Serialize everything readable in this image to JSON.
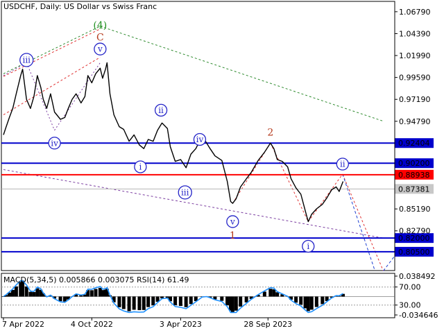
{
  "chart_data": {
    "type": "line",
    "title": "USDCHF, Daily:  US Dollar vs Swiss Franc",
    "price_axis": {
      "ylim": [
        0.7844,
        1.0792
      ],
      "ticks": [
        "1.06790",
        "1.04390",
        "1.01990",
        "0.99590",
        "0.97190",
        "0.94790",
        "0.85190",
        "0.82790"
      ]
    },
    "time_axis": {
      "xlim": [
        "2022-04-07",
        "2023-12-20"
      ],
      "ticks": [
        {
          "date": "2022-04-07",
          "label": "7 Apr 2022"
        },
        {
          "date": "2022-10-04",
          "label": "4 Oct 2022"
        },
        {
          "date": "2023-04-03",
          "label": "3 Apr 2023"
        },
        {
          "date": "2023-09-28",
          "label": "28 Sep 2023"
        }
      ]
    },
    "price_series": [
      [
        "2022-04-07",
        0.933
      ],
      [
        "2022-04-12",
        0.941
      ],
      [
        "2022-04-19",
        0.952
      ],
      [
        "2022-04-26",
        0.962
      ],
      [
        "2022-05-03",
        0.978
      ],
      [
        "2022-05-12",
        0.998
      ],
      [
        "2022-05-16",
        1.005
      ],
      [
        "2022-05-24",
        0.972
      ],
      [
        "2022-06-01",
        0.962
      ],
      [
        "2022-06-08",
        0.975
      ],
      [
        "2022-06-15",
        0.998
      ],
      [
        "2022-06-22",
        0.985
      ],
      [
        "2022-06-27",
        0.972
      ],
      [
        "2022-07-04",
        0.962
      ],
      [
        "2022-07-12",
        0.978
      ],
      [
        "2022-07-20",
        0.958
      ],
      [
        "2022-08-01",
        0.95
      ],
      [
        "2022-08-10",
        0.952
      ],
      [
        "2022-08-17",
        0.962
      ],
      [
        "2022-08-25",
        0.972
      ],
      [
        "2022-09-02",
        0.978
      ],
      [
        "2022-09-12",
        0.968
      ],
      [
        "2022-09-20",
        0.975
      ],
      [
        "2022-09-26",
        0.998
      ],
      [
        "2022-10-04",
        0.99
      ],
      [
        "2022-10-12",
        1.0
      ],
      [
        "2022-10-21",
        1.006
      ],
      [
        "2022-10-26",
        0.995
      ],
      [
        "2022-11-01",
        1.005
      ],
      [
        "2022-11-04",
        1.012
      ],
      [
        "2022-11-10",
        0.978
      ],
      [
        "2022-11-18",
        0.955
      ],
      [
        "2022-11-29",
        0.942
      ],
      [
        "2022-12-08",
        0.939
      ],
      [
        "2022-12-19",
        0.926
      ],
      [
        "2022-12-29",
        0.933
      ],
      [
        "2023-01-09",
        0.922
      ],
      [
        "2023-01-18",
        0.918
      ],
      [
        "2023-01-27",
        0.928
      ],
      [
        "2023-02-06",
        0.926
      ],
      [
        "2023-02-15",
        0.938
      ],
      [
        "2023-02-24",
        0.946
      ],
      [
        "2023-03-07",
        0.94
      ],
      [
        "2023-03-13",
        0.92
      ],
      [
        "2023-03-23",
        0.904
      ],
      [
        "2023-04-03",
        0.906
      ],
      [
        "2023-04-14",
        0.897
      ],
      [
        "2023-04-24",
        0.912
      ],
      [
        "2023-05-04",
        0.918
      ],
      [
        "2023-05-17",
        0.932
      ],
      [
        "2023-05-26",
        0.924
      ],
      [
        "2023-06-02",
        0.918
      ],
      [
        "2023-06-12",
        0.91
      ],
      [
        "2023-06-26",
        0.905
      ],
      [
        "2023-07-07",
        0.882
      ],
      [
        "2023-07-14",
        0.86
      ],
      [
        "2023-07-18",
        0.858
      ],
      [
        "2023-07-25",
        0.863
      ],
      [
        "2023-08-03",
        0.876
      ],
      [
        "2023-08-15",
        0.885
      ],
      [
        "2023-08-25",
        0.892
      ],
      [
        "2023-09-08",
        0.905
      ],
      [
        "2023-09-21",
        0.914
      ],
      [
        "2023-10-03",
        0.924
      ],
      [
        "2023-10-10",
        0.918
      ],
      [
        "2023-10-17",
        0.906
      ],
      [
        "2023-10-27",
        0.904
      ],
      [
        "2023-11-07",
        0.898
      ],
      [
        "2023-11-14",
        0.885
      ],
      [
        "2023-11-24",
        0.875
      ],
      [
        "2023-12-04",
        0.868
      ],
      [
        "2023-12-13",
        0.85
      ],
      [
        "2023-12-19",
        0.838
      ],
      [
        "2023-12-26",
        0.846
      ],
      [
        "2024-01-05",
        0.852
      ],
      [
        "2024-01-17",
        0.857
      ],
      [
        "2024-01-26",
        0.864
      ],
      [
        "2024-02-05",
        0.873
      ],
      [
        "2024-02-14",
        0.876
      ],
      [
        "2024-02-20",
        0.871
      ],
      [
        "2024-02-28",
        0.882
      ]
    ],
    "levels": [
      {
        "price": 0.92404,
        "label": "0.92404",
        "color": "#0000cc"
      },
      {
        "price": 0.902,
        "label": "0.90200",
        "color": "#0000cc"
      },
      {
        "price": 0.88938,
        "label": "0.88938",
        "color": "#ff0000"
      },
      {
        "price": 0.82,
        "label": "0.82000",
        "color": "#0000cc"
      },
      {
        "price": 0.805,
        "label": "0.80500",
        "color": "#0000cc"
      }
    ],
    "current_price": {
      "price": 0.87381,
      "label": "0.87381"
    },
    "wave_labels": [
      {
        "text": "(4)",
        "date": "2022-10-21",
        "price": 1.0535,
        "color": "#1f8f1f"
      },
      {
        "text": "C",
        "date": "2022-10-21",
        "price": 1.04,
        "color": "#b53a1c"
      },
      {
        "text": "v",
        "date": "2022-10-21",
        "price": 1.027,
        "color": "#2424c8",
        "circled": true
      },
      {
        "text": "iii",
        "date": "2022-05-24",
        "price": 1.015,
        "color": "#2424c8",
        "circled": true
      },
      {
        "text": "iv",
        "date": "2022-07-20",
        "price": 0.924,
        "color": "#2424c8",
        "circled": true
      },
      {
        "text": "ii",
        "date": "2023-02-22",
        "price": 0.96,
        "color": "#2424c8",
        "circled": true
      },
      {
        "text": "i",
        "date": "2023-01-11",
        "price": 0.898,
        "color": "#2424c8",
        "circled": true
      },
      {
        "text": "iii",
        "date": "2023-04-12",
        "price": 0.87,
        "color": "#2424c8",
        "circled": true
      },
      {
        "text": "iv",
        "date": "2023-05-12",
        "price": 0.928,
        "color": "#2424c8",
        "circled": true
      },
      {
        "text": "v",
        "date": "2023-07-18",
        "price": 0.838,
        "color": "#2424c8",
        "circled": true
      },
      {
        "text": "1",
        "date": "2023-07-18",
        "price": 0.823,
        "color": "#b53a1c"
      },
      {
        "text": "2",
        "date": "2023-10-03",
        "price": 0.936,
        "color": "#b53a1c"
      },
      {
        "text": "i",
        "date": "2023-12-19",
        "price": 0.811,
        "color": "#2424c8",
        "circled": true
      },
      {
        "text": "ii",
        "date": "2024-02-27",
        "price": 0.901,
        "color": "#2424c8",
        "circled": true
      }
    ],
    "indicator": {
      "label": "MACD(5,34,5) 0.005866 0.003075 RSI(14) 61.49",
      "axis_ticks": [
        "0.038492",
        "70.00",
        "30.00",
        "-0.034646"
      ]
    },
    "colors": {
      "price": "#000000",
      "level_blue": "#0000cc",
      "level_red": "#ff0000",
      "green_trend": "#2e8b2e",
      "red_trend": "#e03030",
      "purple_channel": "#7a3ca0",
      "blue_wave": "#1e3fd0",
      "rsi": "#1e90ff",
      "macd_hist": "#000000"
    },
    "grid": false
  }
}
